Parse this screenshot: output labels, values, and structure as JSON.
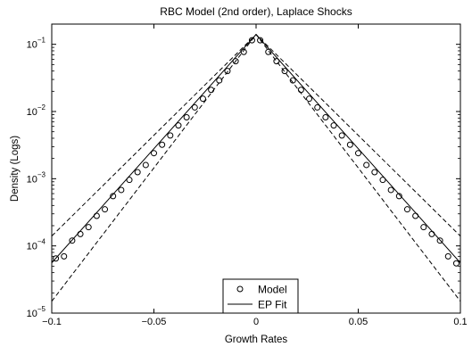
{
  "chart_data": {
    "type": "line",
    "title": "RBC Model (2nd order), Laplace Shocks",
    "xlabel": "Growth Rates",
    "ylabel": "Density (Logs)",
    "xlim": [
      -0.1,
      0.1
    ],
    "ylim": [
      1e-05,
      0.2
    ],
    "yscale": "log",
    "grid": false,
    "legend": "bottom-center",
    "x_ticks": [
      -0.1,
      -0.05,
      0,
      0.05,
      0.1
    ],
    "x_tick_labels": [
      "−0.1",
      "−0.05",
      "0",
      "0.05",
      "0.1"
    ],
    "y_ticks": [
      1e-05,
      0.0001,
      0.001,
      0.01,
      0.1
    ],
    "y_tick_labels": [
      {
        "base": "10",
        "exp": "−5"
      },
      {
        "base": "10",
        "exp": "−4"
      },
      {
        "base": "10",
        "exp": "−3"
      },
      {
        "base": "10",
        "exp": "−2"
      },
      {
        "base": "10",
        "exp": "−1"
      }
    ],
    "series": [
      {
        "name": "Model",
        "style": "circle-markers",
        "x": [
          -0.098,
          -0.094,
          -0.09,
          -0.086,
          -0.082,
          -0.078,
          -0.074,
          -0.07,
          -0.066,
          -0.062,
          -0.058,
          -0.054,
          -0.05,
          -0.046,
          -0.042,
          -0.038,
          -0.034,
          -0.03,
          -0.026,
          -0.022,
          -0.018,
          -0.014,
          -0.01,
          -0.006,
          -0.002,
          0.002,
          0.006,
          0.01,
          0.014,
          0.018,
          0.022,
          0.026,
          0.03,
          0.034,
          0.038,
          0.042,
          0.046,
          0.05,
          0.054,
          0.058,
          0.062,
          0.066,
          0.07,
          0.074,
          0.078,
          0.082,
          0.086,
          0.09,
          0.094,
          0.098
        ],
        "y": [
          6.5e-05,
          7e-05,
          0.00012,
          0.00015,
          0.00019,
          0.00028,
          0.00035,
          0.00055,
          0.00068,
          0.00096,
          0.00125,
          0.0016,
          0.0024,
          0.0032,
          0.0044,
          0.0062,
          0.0082,
          0.0115,
          0.0155,
          0.021,
          0.029,
          0.04,
          0.056,
          0.077,
          0.115,
          0.115,
          0.077,
          0.056,
          0.04,
          0.029,
          0.021,
          0.0155,
          0.0115,
          0.0082,
          0.0062,
          0.0044,
          0.0032,
          0.0024,
          0.0016,
          0.00125,
          0.00096,
          0.00068,
          0.00055,
          0.00035,
          0.00028,
          0.00019,
          0.00015,
          0.00012,
          7e-05,
          5.5e-05
        ]
      },
      {
        "name": "EP Fit",
        "style": "solid",
        "x": [
          -0.1,
          0,
          0.1
        ],
        "y": [
          5.6e-05,
          0.14,
          5.6e-05
        ]
      },
      {
        "style": "dashed",
        "x": [
          -0.1,
          0,
          0.1
        ],
        "y": [
          0.00014,
          0.14,
          0.00014
        ]
      },
      {
        "style": "dashed",
        "x": [
          -0.1,
          0,
          0.1
        ],
        "y": [
          1.5e-05,
          0.14,
          1.5e-05
        ]
      }
    ]
  }
}
